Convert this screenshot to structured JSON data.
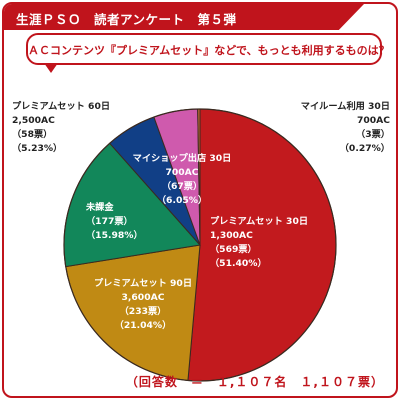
{
  "header": {
    "title": "生涯ＰＳＯ　読者アンケート　第５弾"
  },
  "question": "ＡＣコンテンツ『プレミアムセット』などで、もっとも利用するものは？",
  "footer": "（回答数　＝　１,１０７名　１,１０７票）",
  "colors": {
    "accent": "#c0141c",
    "slices": [
      "#c21a1e",
      "#c08a14",
      "#12875a",
      "#113f86",
      "#cf5aad",
      "#c56a35"
    ]
  },
  "chart_data": {
    "type": "pie",
    "slices": [
      {
        "name": "プレミアムセット 30日",
        "price": "1,300AC",
        "votes": "（569票）",
        "percent_text": "（51.40%）",
        "value": 51.4
      },
      {
        "name": "プレミアムセット 90日",
        "price": "3,600AC",
        "votes": "（233票）",
        "percent_text": "（21.04%）",
        "value": 21.04
      },
      {
        "name": "未課金",
        "price": "",
        "votes": "（177票）",
        "percent_text": "（15.98%）",
        "value": 15.98
      },
      {
        "name": "マイショップ出店 30日",
        "price": "700AC",
        "votes": "（67票）",
        "percent_text": "（6.05%）",
        "value": 6.05
      },
      {
        "name": "プレミアムセット 60日",
        "price": "2,500AC",
        "votes": "（58票）",
        "percent_text": "（5.23%）",
        "value": 5.23
      },
      {
        "name": "マイルーム利用 30日",
        "price": "700AC",
        "votes": "（3票）",
        "percent_text": "（0.27%）",
        "value": 0.27
      }
    ]
  }
}
